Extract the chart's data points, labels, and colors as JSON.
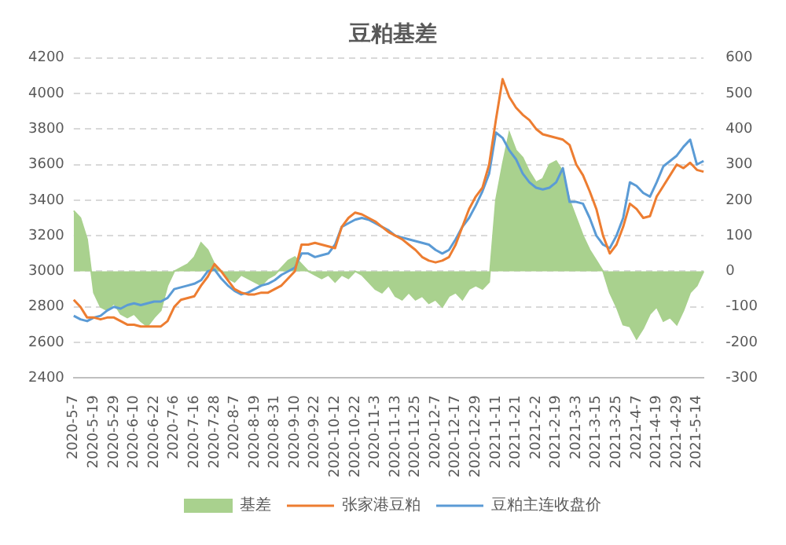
{
  "chart_data": {
    "type": "line",
    "title": "豆粕基差",
    "categories": [
      "2020-5-7",
      null,
      null,
      "2020-5-19",
      null,
      null,
      "2020-5-29",
      null,
      null,
      "2020-6-10",
      null,
      null,
      "2020-6-22",
      null,
      null,
      "2020-7-6",
      null,
      null,
      "2020-7-16",
      null,
      null,
      "2020-7-28",
      null,
      null,
      "2020-8-7",
      null,
      null,
      "2020-8-19",
      null,
      null,
      "2020-8-31",
      null,
      null,
      "2020-9-10",
      null,
      null,
      "2020-9-22",
      null,
      null,
      "2020-10-12",
      null,
      null,
      "2020-10-22",
      null,
      null,
      "2020-11-3",
      null,
      null,
      "2020-11-13",
      null,
      null,
      "2020-11-25",
      null,
      null,
      "2020-12-7",
      null,
      null,
      "2020-12-17",
      null,
      null,
      "2020-12-29",
      null,
      null,
      "2021-1-11",
      null,
      null,
      "2021-1-21",
      null,
      null,
      "2021-2-2",
      null,
      null,
      "2021-2-19",
      null,
      null,
      "2021-3-3",
      null,
      null,
      "2021-3-15",
      null,
      null,
      "2021-3-25",
      null,
      null,
      "2021-4-7",
      null,
      null,
      "2021-4-19",
      null,
      null,
      "2021-4-29",
      null,
      null,
      "2021-5-14",
      null
    ],
    "series": [
      {
        "name": "基差",
        "type": "area",
        "axis": "y2",
        "color": "#a9d18e",
        "values": [
          170,
          150,
          90,
          -60,
          -100,
          -110,
          -90,
          -120,
          -130,
          -120,
          -140,
          -155,
          -130,
          -110,
          -40,
          0,
          10,
          20,
          40,
          80,
          60,
          20,
          0,
          -20,
          -30,
          -10,
          -20,
          -30,
          -40,
          -20,
          -10,
          10,
          30,
          40,
          20,
          0,
          -10,
          -20,
          -10,
          -30,
          -10,
          -20,
          0,
          -10,
          -30,
          -50,
          -60,
          -40,
          -70,
          -80,
          -60,
          -80,
          -70,
          -90,
          -80,
          -100,
          -70,
          -60,
          -80,
          -50,
          -40,
          -50,
          -30,
          200,
          300,
          390,
          340,
          320,
          280,
          250,
          260,
          300,
          310,
          280,
          200,
          150,
          100,
          60,
          30,
          0,
          -60,
          -100,
          -150,
          -155,
          -190,
          -160,
          -120,
          -100,
          -140,
          -130,
          -150,
          -110,
          -60,
          -40,
          0
        ]
      },
      {
        "name": "张家港豆粕",
        "type": "line",
        "color": "#ed7d31",
        "values": [
          2840,
          2800,
          2740,
          2740,
          2730,
          2740,
          2740,
          2720,
          2700,
          2700,
          2690,
          2690,
          2690,
          2690,
          2720,
          2800,
          2840,
          2850,
          2860,
          2920,
          2970,
          3040,
          3000,
          2950,
          2900,
          2880,
          2870,
          2870,
          2880,
          2880,
          2900,
          2920,
          2960,
          3000,
          3150,
          3150,
          3160,
          3150,
          3140,
          3130,
          3250,
          3300,
          3330,
          3320,
          3300,
          3280,
          3250,
          3220,
          3200,
          3180,
          3150,
          3120,
          3080,
          3060,
          3050,
          3060,
          3080,
          3150,
          3250,
          3350,
          3420,
          3470,
          3600,
          3850,
          4080,
          3980,
          3920,
          3880,
          3850,
          3800,
          3770,
          3760,
          3750,
          3740,
          3710,
          3600,
          3540,
          3450,
          3350,
          3200,
          3100,
          3150,
          3250,
          3380,
          3350,
          3300,
          3310,
          3420,
          3480,
          3540,
          3600,
          3580,
          3610,
          3570,
          3560
        ]
      },
      {
        "name": "豆粕主连收盘价",
        "type": "line",
        "color": "#5b9bd5",
        "values": [
          2750,
          2730,
          2720,
          2740,
          2750,
          2780,
          2800,
          2790,
          2810,
          2820,
          2810,
          2820,
          2830,
          2830,
          2850,
          2900,
          2910,
          2920,
          2930,
          2950,
          3000,
          3010,
          2960,
          2920,
          2890,
          2870,
          2880,
          2900,
          2920,
          2930,
          2950,
          2980,
          3000,
          3020,
          3100,
          3100,
          3080,
          3090,
          3100,
          3150,
          3250,
          3270,
          3290,
          3300,
          3290,
          3270,
          3250,
          3230,
          3200,
          3190,
          3180,
          3170,
          3160,
          3150,
          3120,
          3100,
          3120,
          3180,
          3250,
          3300,
          3370,
          3450,
          3550,
          3780,
          3750,
          3680,
          3630,
          3550,
          3500,
          3470,
          3460,
          3470,
          3500,
          3580,
          3390,
          3390,
          3380,
          3300,
          3200,
          3150,
          3130,
          3200,
          3300,
          3500,
          3480,
          3440,
          3420,
          3500,
          3590,
          3620,
          3650,
          3700,
          3740,
          3600,
          3620
        ]
      }
    ],
    "ylim": [
      2400,
      4200
    ],
    "yticks": [
      2400,
      2600,
      2800,
      3000,
      3200,
      3400,
      3600,
      3800,
      4000,
      4200
    ],
    "y2lim": [
      -300,
      600
    ],
    "y2ticks": [
      -300,
      -200,
      -100,
      0,
      100,
      200,
      300,
      400,
      500,
      600
    ],
    "grid": "y",
    "legend": "bottom",
    "marker": "none",
    "line_style": "solid"
  }
}
